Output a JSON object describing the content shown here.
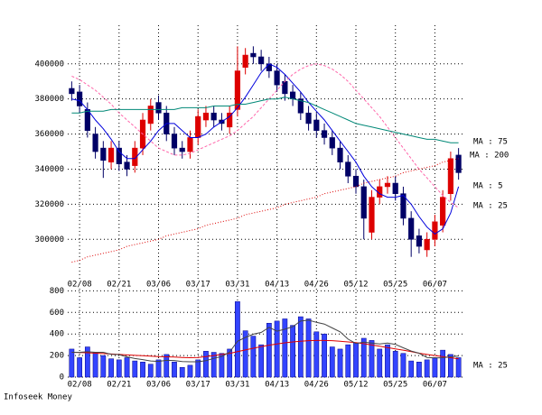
{
  "footer": "Infoseek Money",
  "chart_data": [
    {
      "type": "candlestick",
      "categories": [
        null,
        "02/08",
        null,
        null,
        null,
        null,
        "02/21",
        null,
        null,
        null,
        null,
        "03/06",
        null,
        null,
        null,
        null,
        "03/17",
        null,
        null,
        null,
        null,
        "03/31",
        null,
        null,
        null,
        null,
        "04/13",
        null,
        null,
        null,
        null,
        "04/26",
        null,
        null,
        null,
        null,
        "05/12",
        null,
        null,
        null,
        null,
        "05/25",
        null,
        null,
        null,
        null,
        "06/07",
        null,
        null,
        null
      ],
      "open": [
        386000,
        384000,
        374000,
        360000,
        352000,
        344000,
        352000,
        344000,
        342000,
        352000,
        366000,
        378000,
        372000,
        360000,
        352000,
        350000,
        358000,
        368000,
        372000,
        368000,
        364000,
        374000,
        398000,
        406000,
        404000,
        400000,
        396000,
        390000,
        384000,
        380000,
        372000,
        368000,
        362000,
        358000,
        352000,
        344000,
        336000,
        330000,
        304000,
        324000,
        330000,
        332000,
        326000,
        312000,
        302000,
        294000,
        300000,
        308000,
        326000,
        348000
      ],
      "high": [
        390000,
        388000,
        378000,
        364000,
        356000,
        356000,
        356000,
        348000,
        356000,
        372000,
        380000,
        382000,
        376000,
        364000,
        356000,
        362000,
        374000,
        376000,
        376000,
        372000,
        376000,
        410000,
        409000,
        410000,
        408000,
        404000,
        400000,
        394000,
        388000,
        384000,
        376000,
        372000,
        366000,
        362000,
        356000,
        348000,
        340000,
        334000,
        328000,
        334000,
        336000,
        336000,
        330000,
        316000,
        306000,
        304000,
        314000,
        328000,
        350000,
        352000
      ],
      "low": [
        379000,
        372000,
        358000,
        346000,
        335000,
        340000,
        339000,
        336000,
        338000,
        348000,
        362000,
        368000,
        356000,
        348000,
        346000,
        346000,
        354000,
        364000,
        364000,
        362000,
        360000,
        370000,
        394000,
        400000,
        396000,
        392000,
        384000,
        379000,
        376000,
        368000,
        362000,
        358000,
        354000,
        348000,
        340000,
        332000,
        326000,
        300000,
        300000,
        320000,
        326000,
        322000,
        308000,
        290000,
        292000,
        290000,
        296000,
        304000,
        322000,
        334000
      ],
      "close": [
        383000,
        376000,
        362000,
        350000,
        345000,
        352000,
        343000,
        340000,
        352000,
        368000,
        376000,
        372000,
        360000,
        352000,
        350000,
        358000,
        370000,
        372000,
        368000,
        366000,
        372000,
        396000,
        405000,
        404000,
        400000,
        396000,
        388000,
        383000,
        380000,
        372000,
        366000,
        362000,
        358000,
        352000,
        344000,
        336000,
        330000,
        312000,
        324000,
        330000,
        332000,
        326000,
        312000,
        300000,
        296000,
        300000,
        310000,
        324000,
        346000,
        338000
      ],
      "up_color": "#dd0000",
      "down_color": "#000066",
      "ylim": [
        277000,
        422000
      ],
      "yticks": [
        300000,
        320000,
        340000,
        360000,
        380000,
        400000
      ],
      "grid": true,
      "series": [
        {
          "name": "MA : 5",
          "color": "#0000dd",
          "dash": "none",
          "values": [
            380000,
            379000,
            374000,
            368000,
            363000,
            357000,
            350000,
            346000,
            346000,
            351000,
            356000,
            362000,
            366000,
            366000,
            362000,
            358000,
            358000,
            360000,
            364000,
            367000,
            370000,
            375000,
            381000,
            388000,
            395000,
            400000,
            398000,
            394000,
            389000,
            384000,
            378000,
            373000,
            368000,
            362000,
            356000,
            350000,
            344000,
            336000,
            330000,
            326000,
            324000,
            324000,
            325000,
            320000,
            313000,
            307000,
            303000,
            306000,
            315000,
            330000
          ]
        },
        {
          "name": "MA : 25",
          "color": "#ff66aa",
          "dash": "3,2",
          "values": [
            393000,
            391000,
            388000,
            385000,
            381000,
            377000,
            372000,
            368000,
            364000,
            360000,
            356000,
            352000,
            350000,
            348000,
            348000,
            349000,
            351000,
            353000,
            355000,
            357000,
            359000,
            362000,
            366000,
            370000,
            375000,
            380000,
            385000,
            390000,
            394000,
            397000,
            399000,
            400000,
            399000,
            397000,
            394000,
            390000,
            385000,
            380000,
            375000,
            370000,
            364000,
            358000,
            352000,
            346000,
            340000,
            335000,
            330000,
            325000,
            321000,
            318000
          ]
        },
        {
          "name": "MA : 75",
          "color": "#008877",
          "dash": "none",
          "values": [
            372000,
            372000,
            373000,
            373000,
            373000,
            374000,
            374000,
            374000,
            374000,
            374000,
            374000,
            374000,
            374000,
            374000,
            375000,
            375000,
            375000,
            375000,
            376000,
            376000,
            376000,
            377000,
            377000,
            378000,
            379000,
            380000,
            380000,
            381000,
            380000,
            379000,
            378000,
            376000,
            374000,
            372000,
            370000,
            368000,
            366000,
            365000,
            364000,
            363000,
            362000,
            361000,
            360000,
            359000,
            358000,
            357000,
            357000,
            356000,
            355000,
            355000
          ]
        },
        {
          "name": "MA : 200",
          "color": "#dd0000",
          "dash": "1,2",
          "values": [
            287000,
            288000,
            290000,
            291000,
            292000,
            293000,
            294000,
            296000,
            297000,
            298000,
            299000,
            300000,
            302000,
            303000,
            304000,
            305000,
            306000,
            308000,
            309000,
            310000,
            311000,
            312000,
            314000,
            315000,
            316000,
            317000,
            318000,
            320000,
            321000,
            322000,
            323000,
            324000,
            326000,
            327000,
            328000,
            329000,
            330000,
            332000,
            333000,
            334000,
            335000,
            336000,
            338000,
            339000,
            340000,
            341000,
            342000,
            344000,
            345000,
            346000
          ]
        }
      ]
    },
    {
      "type": "bar",
      "values": [
        260,
        180,
        280,
        230,
        200,
        170,
        160,
        180,
        150,
        140,
        120,
        160,
        210,
        140,
        90,
        110,
        160,
        240,
        230,
        220,
        260,
        700,
        430,
        380,
        300,
        500,
        520,
        540,
        480,
        560,
        540,
        420,
        400,
        280,
        260,
        300,
        320,
        360,
        340,
        260,
        300,
        240,
        220,
        150,
        140,
        160,
        180,
        250,
        210,
        180
      ],
      "color": "#3344ff",
      "ylim": [
        0,
        820
      ],
      "yticks": [
        0,
        200,
        400,
        600,
        800
      ],
      "grid": true,
      "series": [
        {
          "name": "MA : 25",
          "color": "#dd0000",
          "values": [
            230,
            228,
            226,
            222,
            218,
            214,
            210,
            206,
            202,
            198,
            194,
            190,
            188,
            186,
            182,
            180,
            182,
            190,
            200,
            210,
            220,
            236,
            252,
            268,
            282,
            296,
            308,
            318,
            326,
            332,
            338,
            340,
            340,
            338,
            332,
            326,
            320,
            310,
            298,
            286,
            274,
            262,
            250,
            236,
            222,
            210,
            200,
            190,
            180,
            170
          ]
        },
        {
          "color": "#444444",
          "values": [
            230,
            230,
            235,
            230,
            230,
            212,
            208,
            188,
            172,
            162,
            150,
            146,
            156,
            154,
            144,
            142,
            142,
            152,
            174,
            192,
            232,
            332,
            368,
            398,
            414,
            462,
            426,
            444,
            468,
            520,
            528,
            508,
            492,
            456,
            420,
            352,
            312,
            324,
            316,
            308,
            316,
            304,
            272,
            242,
            222,
            182,
            178,
            180,
            188,
            196
          ]
        }
      ]
    }
  ]
}
